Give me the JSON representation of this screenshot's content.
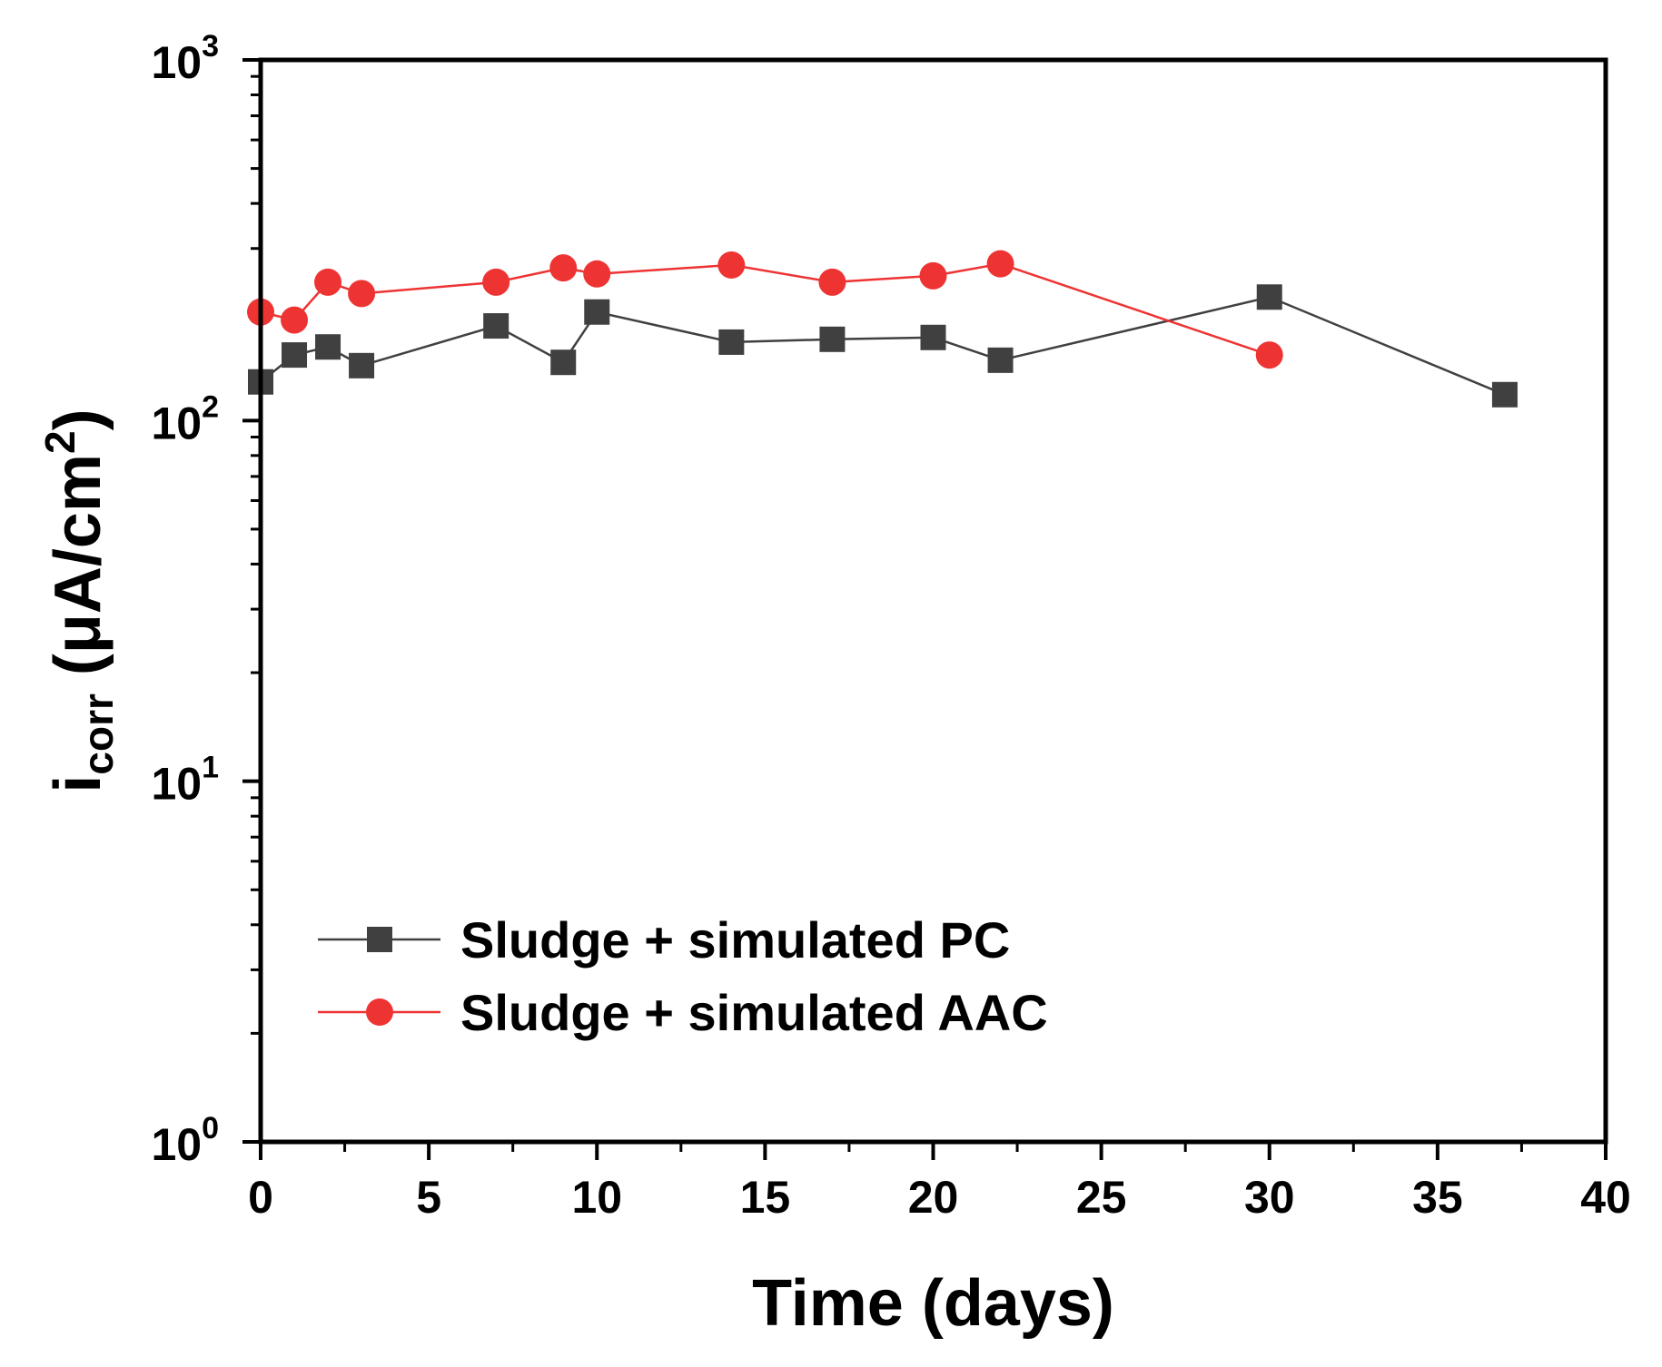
{
  "chart_data": {
    "type": "line",
    "y_scale": "log",
    "xlabel": "Time (days)",
    "ylabel": {
      "base": "i",
      "subscript": "corr",
      "units_prefix": " (μA/cm",
      "units_superscript": "2",
      "units_suffix": ")"
    },
    "xlim": [
      0,
      40
    ],
    "ylim": [
      1,
      1000
    ],
    "x_ticks": [
      0,
      5,
      10,
      15,
      20,
      25,
      30,
      35,
      40
    ],
    "x_tick_labels": [
      "0",
      "5",
      "10",
      "15",
      "20",
      "25",
      "30",
      "35",
      "40"
    ],
    "y_ticks": [
      {
        "value": 1,
        "base": "10",
        "exp": "0"
      },
      {
        "value": 10,
        "base": "10",
        "exp": "1"
      },
      {
        "value": 100,
        "base": "10",
        "exp": "2"
      },
      {
        "value": 1000,
        "base": "10",
        "exp": "3"
      }
    ],
    "legend_position": "lower-left",
    "series": [
      {
        "name": "Sludge + simulated PC",
        "color": "#404040",
        "marker": "square",
        "x": [
          0,
          1,
          2,
          3,
          7,
          9,
          10,
          14,
          17,
          20,
          22,
          30,
          37
        ],
        "values": [
          128,
          152,
          160,
          142,
          183,
          145,
          200,
          165,
          168,
          170,
          147,
          220,
          118
        ]
      },
      {
        "name": "Sludge + simulated AAC",
        "color": "#ee3333",
        "marker": "circle",
        "x": [
          0,
          1,
          2,
          3,
          7,
          9,
          10,
          14,
          17,
          20,
          22,
          30
        ],
        "values": [
          200,
          190,
          242,
          225,
          242,
          265,
          255,
          270,
          242,
          252,
          272,
          152
        ]
      }
    ]
  }
}
